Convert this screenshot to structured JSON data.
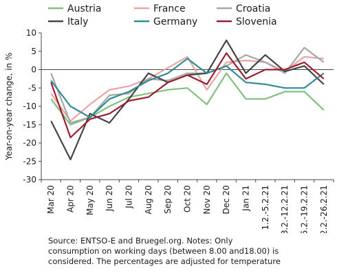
{
  "chart_data": {
    "type": "line",
    "ylabel": "Year-on-year change, in %",
    "ylim": [
      -30,
      10
    ],
    "yticks": [
      10,
      5,
      0,
      -5,
      -10,
      -15,
      -20,
      -25,
      -30
    ],
    "grid": false,
    "legend_position": "top",
    "categories": [
      "Mar 20",
      "Apr 20",
      "May 20",
      "Jun 20",
      "Jul 20",
      "Aug 20",
      "Sep 20",
      "Oct 20",
      "Nov 20",
      "Dec 20",
      "Jan 21",
      "1.2.-5.2.21",
      "8.2.-12.2.21",
      "15.2.-19.2.21",
      "22.2.-26.2.21"
    ],
    "series": [
      {
        "name": "Austria",
        "color": "#7fbf7f",
        "values": [
          -8,
          -15,
          -13,
          -10,
          -7.5,
          -6.5,
          -5.5,
          -5,
          -9.5,
          -1,
          -8,
          -8,
          -6,
          -6,
          -11
        ]
      },
      {
        "name": "France",
        "color": "#e8a3a3",
        "values": [
          -6.5,
          -14,
          -9.5,
          -5.5,
          -4.5,
          -2.5,
          0.5,
          3.5,
          -5.5,
          2,
          2.5,
          2,
          -0.5,
          3.5,
          3
        ]
      },
      {
        "name": "Croatia",
        "color": "#a6a6a6",
        "values": [
          -1,
          -14.5,
          -13,
          -7,
          -6.5,
          -2.5,
          -3,
          -1,
          -1,
          1,
          4,
          2,
          -1,
          6,
          2
        ]
      },
      {
        "name": "Italy",
        "color": "#444444",
        "values": [
          -14,
          -24.5,
          -12,
          -14.5,
          -8,
          -1,
          -3.5,
          -1.5,
          -1,
          8,
          -1,
          4,
          -0.5,
          1,
          -4
        ]
      },
      {
        "name": "Germany",
        "color": "#2e8b94",
        "values": [
          -3,
          -10,
          -13,
          -8,
          -6,
          -3,
          -1,
          3,
          -1,
          1,
          -3.5,
          -4,
          -5,
          -5,
          -1
        ]
      },
      {
        "name": "Slovenia",
        "color": "#9e1b2c",
        "values": [
          -3.5,
          -18.5,
          -13.5,
          -12,
          -8.5,
          -7.5,
          -3.5,
          -1.5,
          -4,
          4.5,
          -2.5,
          0,
          0,
          2,
          -2.5
        ]
      }
    ]
  },
  "note": {
    "line1": "Source: ENTSO-E and Bruegel.org. Notes: Only",
    "line2": "consumption on working days (between 8.00 and18.00) is",
    "line3": "considered. The percentages are adjusted for temperature"
  }
}
